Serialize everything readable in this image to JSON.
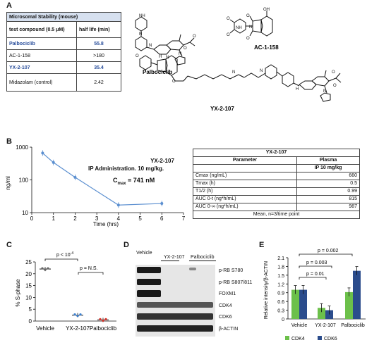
{
  "panel_labels": {
    "a": "A",
    "b": "B",
    "c": "C",
    "d": "D",
    "e": "E"
  },
  "microsomal_table": {
    "title": "Microsomal Stability (mouse)",
    "col1": "test compound (0.5 μM)",
    "col2": "half life (min)",
    "rows": [
      {
        "compound": "Palbociclib",
        "half_life": "55.8"
      },
      {
        "compound": "AC-1-158",
        "half_life": ">180"
      },
      {
        "compound": "YX-2-107",
        "half_life": "35.4"
      },
      {
        "compound": "Midazolam (control)",
        "half_life": "2.42"
      }
    ]
  },
  "structures": {
    "palbociclib": "Palbociclib",
    "ac1158": "AC-1-158",
    "yx2107": "YX-2-107"
  },
  "atoms": {
    "N": "N",
    "O": "O",
    "H": "H",
    "NH": "NH",
    "OH": "OH"
  },
  "pk_chart": {
    "annotation_line1": "YX-2-107",
    "annotation_line2": "IP Administration.  10 mg/kg.",
    "cmax_label": "C",
    "cmax_sub": "max",
    "cmax_value": " = 741 nM"
  },
  "pk_table": {
    "title": "YX-2-107",
    "h_param": "Parameter",
    "h_plasma": "Plasma",
    "h_dose": "IP 10 mg/kg",
    "rows": [
      {
        "param": "Cmax (ng/mL)",
        "value": "660"
      },
      {
        "param": "Tmax (h)",
        "value": "0.5"
      },
      {
        "param": "T1/2 (h)",
        "value": "0.99"
      },
      {
        "param": "AUC 0-t (ng*h/mL)",
        "value": "815"
      },
      {
        "param": "AUC 0-∞ (ng*h/mL)",
        "value": "987"
      }
    ],
    "footer": "Mean, n=3/time point"
  },
  "sphase": {
    "p1_main": "p < 10",
    "p1_sup": "-4",
    "p2": "p = N.S."
  },
  "western": {
    "groups": [
      "Vehicle",
      "YX-2-107",
      "Palbociclib"
    ],
    "bands": [
      "p-RB S780",
      "p-RB S807/811",
      "FOXM1",
      "CDK4",
      "CDK6",
      "β-ACTIN"
    ]
  },
  "bars": {
    "p_values": [
      "p = 0.002",
      "p = 0.003",
      "p = 0.01"
    ]
  },
  "chart_data": [
    {
      "type": "line",
      "xlabel": "Time (hrs)",
      "ylabel": "ng/ml",
      "y_scale": "log",
      "xlim": [
        0,
        7
      ],
      "ylim": [
        10,
        1000
      ],
      "x_ticks": [
        "0",
        "1",
        "2",
        "3",
        "4",
        "5",
        "6",
        "7"
      ],
      "y_ticks": [
        "10",
        "100",
        "1000"
      ],
      "x": [
        0.5,
        1,
        2,
        4,
        6
      ],
      "y": [
        660,
        340,
        120,
        17,
        19
      ],
      "color": "#5b8fd0"
    },
    {
      "type": "scatter",
      "ylabel": "% S-phase",
      "ylim": [
        0,
        25
      ],
      "y_ticks": [
        "0",
        "5",
        "10",
        "15",
        "20",
        "25"
      ],
      "categories": [
        "Vehicle",
        "YX-2-107",
        "Palbociclib"
      ],
      "values": [
        22,
        2.5,
        0.5
      ],
      "colors": [
        "#666666",
        "#3b7fd0",
        "#d9342b"
      ]
    },
    {
      "type": "bar",
      "ylabel": "Relative intensity/β-ACTIN",
      "ylim": [
        0,
        2.1
      ],
      "y_ticks": [
        "0",
        "0.3",
        "0.6",
        "0.9",
        "1.2",
        "1.5",
        "1.8",
        "2.1"
      ],
      "categories": [
        "Vehicle",
        "YX-2-107",
        "Palbociclib"
      ],
      "series": [
        {
          "name": "CDK4",
          "values": [
            1.0,
            0.38,
            0.92
          ],
          "color": "#6cc04a"
        },
        {
          "name": "CDK6",
          "values": [
            1.0,
            0.3,
            1.65
          ],
          "color": "#2b4c8c"
        }
      ],
      "legend_position": "bottom"
    }
  ]
}
